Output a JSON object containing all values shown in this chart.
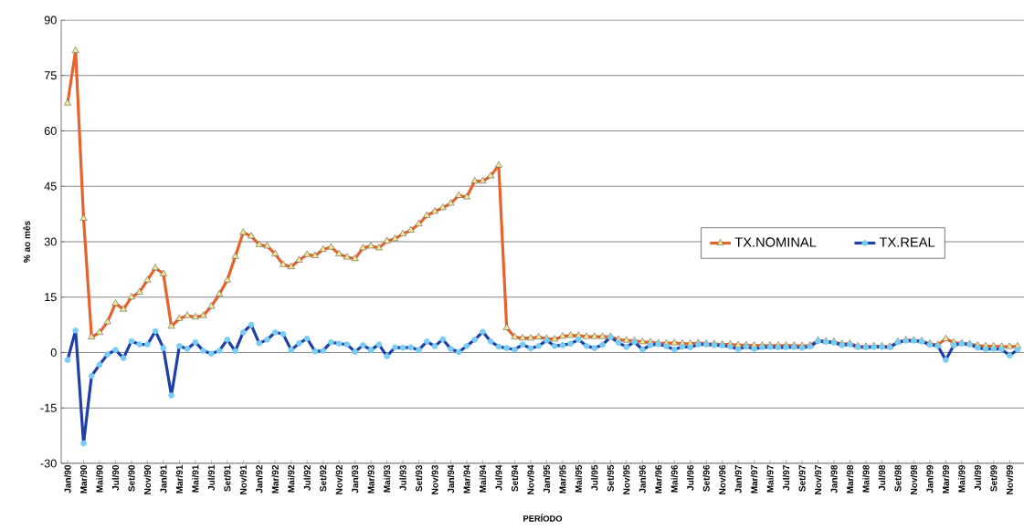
{
  "chart_data": {
    "type": "line",
    "xlabel": "PERÍODO",
    "ylabel": "% ao mês",
    "categories": [
      "Jan/90",
      null,
      "Mar/90",
      null,
      "Mai/90",
      null,
      "Jul/90",
      null,
      "Set/90",
      null,
      "Nov/90",
      null,
      "Jan/91",
      null,
      "Mar/91",
      null,
      "Mai/91",
      null,
      "Jul/91",
      null,
      "Set/91",
      null,
      "Nov/91",
      null,
      "Jan/92",
      null,
      "Mar/92",
      null,
      "Mai/92",
      null,
      "Jul/92",
      null,
      "Set/92",
      null,
      "Nov/92",
      null,
      "Jan/93",
      null,
      "Mar/93",
      null,
      "Mai/93",
      null,
      "Jul/93",
      null,
      "Set/93",
      null,
      "Nov/93",
      null,
      "Jan/94",
      null,
      "Mar/94",
      null,
      "Mai/94",
      null,
      "Jul/94",
      null,
      "Set/94",
      null,
      "Nov/94",
      null,
      "Jan/95",
      null,
      "Mar/95",
      null,
      "Mai/95",
      null,
      "Jul/95",
      null,
      "Set/95",
      null,
      "Nov/95",
      null,
      "Jan/96",
      null,
      "Mar/96",
      null,
      "Mai/96",
      null,
      "Jul/96",
      null,
      "Set/96",
      null,
      "Nov/96",
      null,
      "Jan/97",
      null,
      "Mar/97",
      null,
      "Mai/97",
      null,
      "Jul/97",
      null,
      "Set/97",
      null,
      "Nov/97",
      null,
      "Jan/98",
      null,
      "Mar/98",
      null,
      "Mai/98",
      null,
      "Jul/98",
      null,
      "Set/98",
      null,
      "Nov/98",
      null,
      "Jan/99",
      null,
      "Mar/99",
      null,
      "Mai/99",
      null,
      "Jul/99",
      null,
      "Set/99",
      null,
      "Nov/99",
      null
    ],
    "series": [
      {
        "name": "TX.NOMINAL",
        "color": "#e8622c",
        "marker": "triangle",
        "values": [
          67.5,
          81.7,
          36.3,
          4.2,
          5.4,
          8.3,
          13.3,
          11.7,
          15,
          16.3,
          19.6,
          22.9,
          21.3,
          7.1,
          9.2,
          10,
          9.6,
          10,
          12.5,
          15.8,
          19.6,
          26,
          32.5,
          31.5,
          29.2,
          28.8,
          26.7,
          23.8,
          23.2,
          25,
          26.5,
          26.2,
          27.9,
          28.5,
          26.7,
          25.8,
          25.4,
          28.3,
          28.8,
          28.3,
          30.2,
          30.8,
          32.1,
          33.1,
          34.8,
          37.1,
          38.2,
          39.2,
          40.4,
          42.5,
          42.1,
          46.4,
          46.4,
          47.8,
          50.7,
          6.7,
          4.2,
          3.9,
          3.9,
          4.2,
          3.8,
          3.6,
          4.4,
          4.6,
          4.6,
          4.3,
          4.3,
          4.3,
          4.3,
          3.5,
          3.3,
          3.2,
          2.9,
          2.8,
          2.5,
          2.5,
          2.6,
          2.4,
          2.4,
          2.6,
          2.4,
          2.3,
          2.2,
          2.2,
          2.0,
          2.0,
          1.9,
          1.9,
          1.9,
          1.9,
          1.9,
          1.9,
          1.8,
          1.9,
          3.3,
          3.0,
          2.9,
          2.3,
          2.4,
          1.7,
          1.6,
          1.7,
          1.7,
          1.6,
          2.9,
          3.4,
          3.3,
          3.1,
          2.4,
          2.1,
          3.7,
          2.7,
          2.5,
          2.3,
          1.9,
          1.7,
          1.7,
          1.6,
          1.6,
          1.7
        ]
      },
      {
        "name": "TX.REAL",
        "color": "#1f3fa8",
        "marker": "circle",
        "values": [
          -2,
          6,
          -24.6,
          -6.3,
          -3.3,
          -0.5,
          0.7,
          -1.5,
          3.1,
          2.2,
          2.2,
          5.8,
          1.2,
          -11.6,
          1.8,
          1,
          2.8,
          0.5,
          -0.3,
          0.5,
          3.5,
          0.4,
          5.5,
          7.5,
          2.5,
          3.5,
          5.5,
          5,
          0.7,
          2.5,
          3.8,
          0.3,
          0.5,
          2.8,
          2.4,
          2.2,
          0.2,
          2,
          0.7,
          2.2,
          -1,
          1.4,
          1.3,
          1.4,
          0.7,
          3,
          1.7,
          3.6,
          1,
          0.1,
          1.8,
          3.5,
          5.6,
          3,
          1.6,
          1.2,
          0.8,
          2.2,
          1.1,
          1.8,
          3.3,
          1.8,
          2,
          2.4,
          3.5,
          1.8,
          1.2,
          2.1,
          4.2,
          2.7,
          1.5,
          2.9,
          0.8,
          2,
          2.3,
          1.7,
          0.8,
          1.6,
          1.4,
          2.2,
          2.2,
          2,
          1.9,
          1.6,
          0.9,
          1.6,
          1,
          1.4,
          1.5,
          1.4,
          1.4,
          1.5,
          1.3,
          1.6,
          3.1,
          2.9,
          2.7,
          2,
          2.2,
          1.5,
          1.4,
          1.5,
          1.5,
          1.4,
          2.8,
          3.2,
          3.2,
          3.0,
          2.1,
          1.8,
          -2,
          2,
          2.4,
          2.2,
          1.3,
          0.9,
          1,
          0.9,
          -0.8,
          0.8
        ]
      }
    ],
    "ylim": [
      -30,
      90
    ],
    "yticks": [
      -30,
      -15,
      0,
      15,
      30,
      45,
      60,
      75,
      90
    ],
    "grid": "y",
    "legend": "right"
  }
}
